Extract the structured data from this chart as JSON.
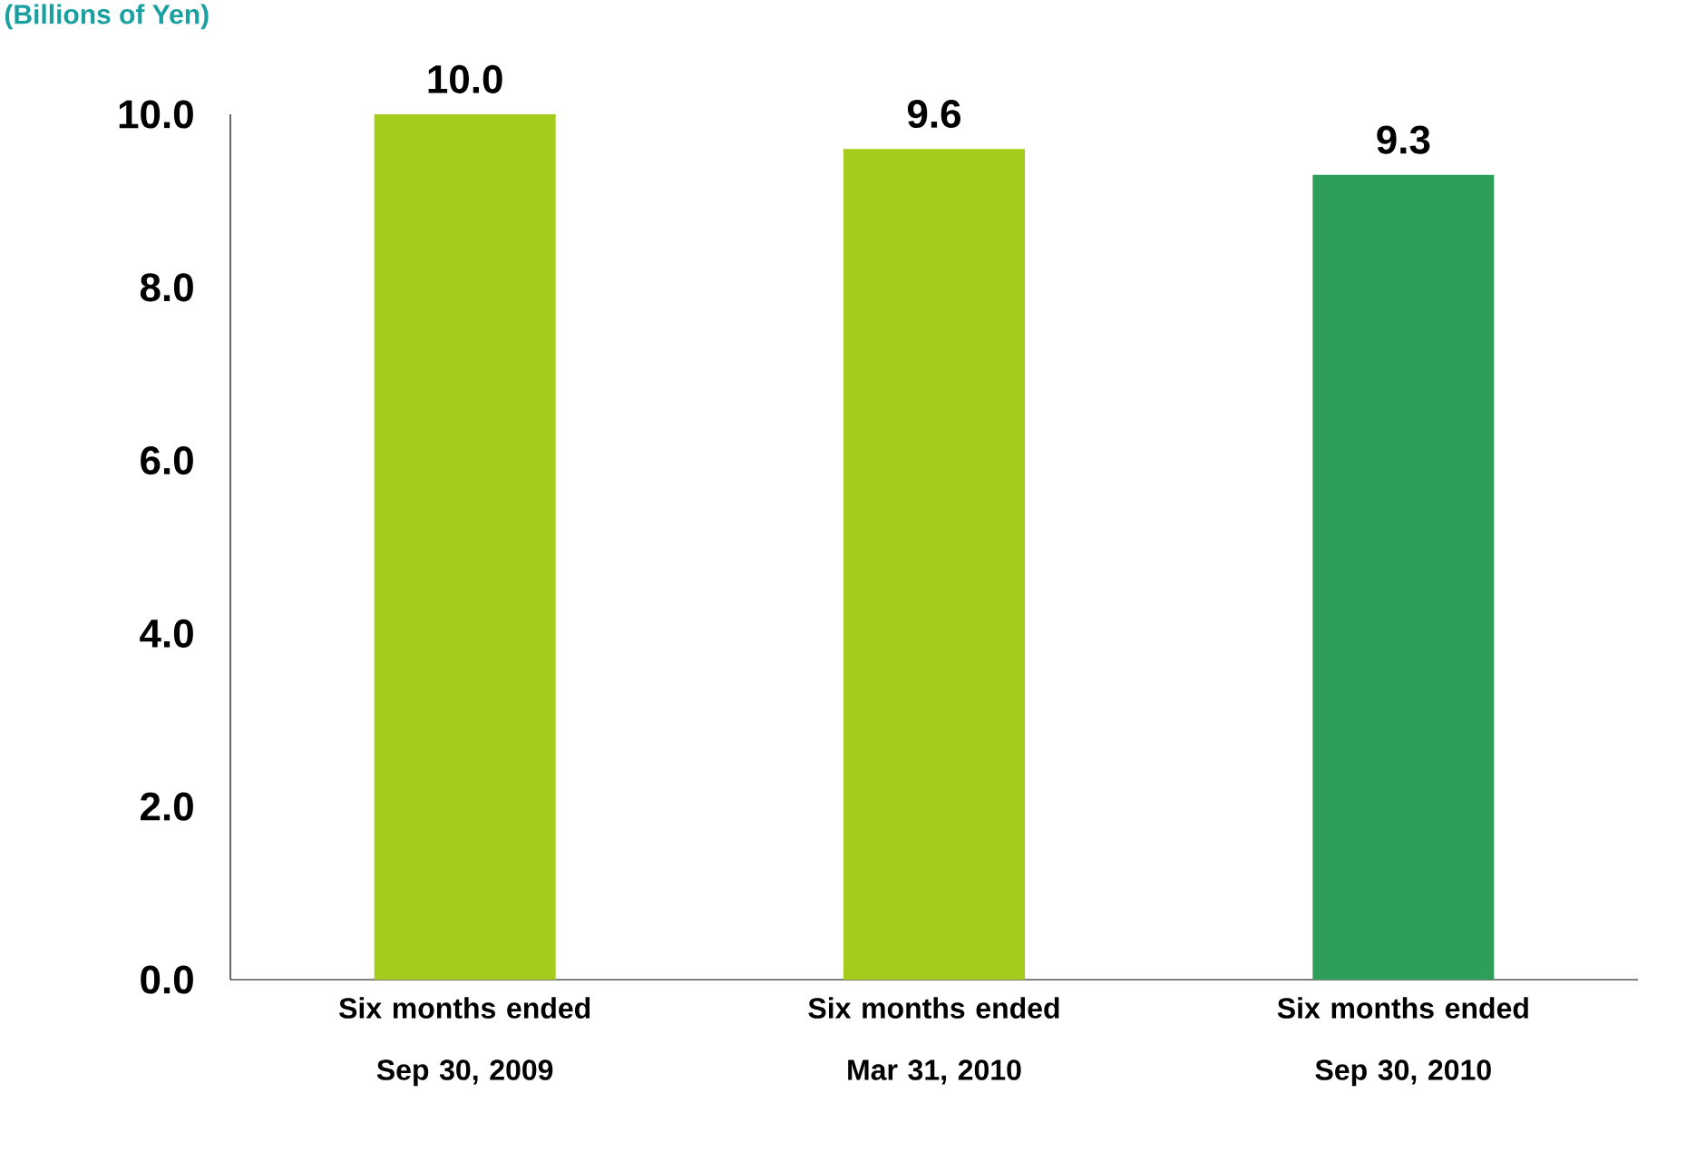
{
  "chart_data": {
    "type": "bar",
    "ylabel": "(Billions of Yen)",
    "categories": [
      "Six months ended Sep 30, 2009",
      "Six months ended Mar 31, 2010",
      "Six months ended Sep 30, 2010"
    ],
    "values": [
      10.0,
      9.6,
      9.3
    ],
    "value_labels": [
      "10.0",
      "9.6",
      "9.3"
    ],
    "colors": [
      "#a4cc1c",
      "#a4cc1c",
      "#2e9e5a"
    ],
    "ylim": [
      0,
      10
    ],
    "yticks": [
      {
        "value": 0,
        "label": "0.0"
      },
      {
        "value": 2,
        "label": "2.0"
      },
      {
        "value": 4,
        "label": "4.0"
      },
      {
        "value": 6,
        "label": "6.0"
      },
      {
        "value": 8,
        "label": "8.0"
      },
      {
        "value": 10,
        "label": "10.0"
      }
    ],
    "grid": false
  }
}
